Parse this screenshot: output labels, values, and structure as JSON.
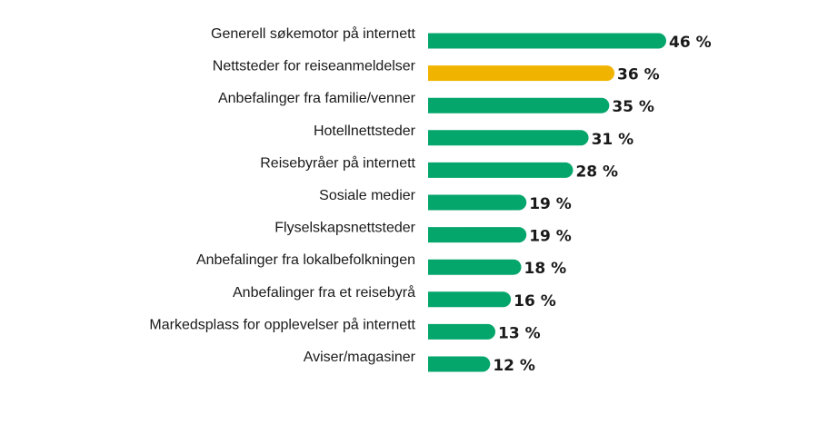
{
  "chart_data": {
    "type": "bar",
    "orientation": "horizontal",
    "title": "",
    "xlabel": "",
    "ylabel": "",
    "grid": false,
    "legend": "none",
    "xlim": [
      0,
      46
    ],
    "categories": [
      "Generell søkemotor på internett",
      "Nettsteder for reiseanmeldelser",
      "Anbefalinger fra familie/venner",
      "Hotellnettsteder",
      "Reisebyråer på internett",
      "Sosiale medier",
      "Flyselskapsnettsteder",
      "Anbefalinger fra lokalbefolkningen",
      "Anbefalinger fra et reisebyrå",
      "Markedsplass for opplevelser på internett",
      "Aviser/magasiner"
    ],
    "values": [
      46,
      36,
      35,
      31,
      28,
      19,
      19,
      18,
      16,
      13,
      12
    ],
    "value_labels": [
      "46 %",
      "36 %",
      "35 %",
      "31 %",
      "28 %",
      "19 %",
      "19 %",
      "18 %",
      "16 %",
      "13 %",
      "12 %"
    ],
    "colors": {
      "default": "#04A66B",
      "highlight": "#F0B400",
      "text": "#1a1a1a"
    },
    "highlight_index": 1
  }
}
